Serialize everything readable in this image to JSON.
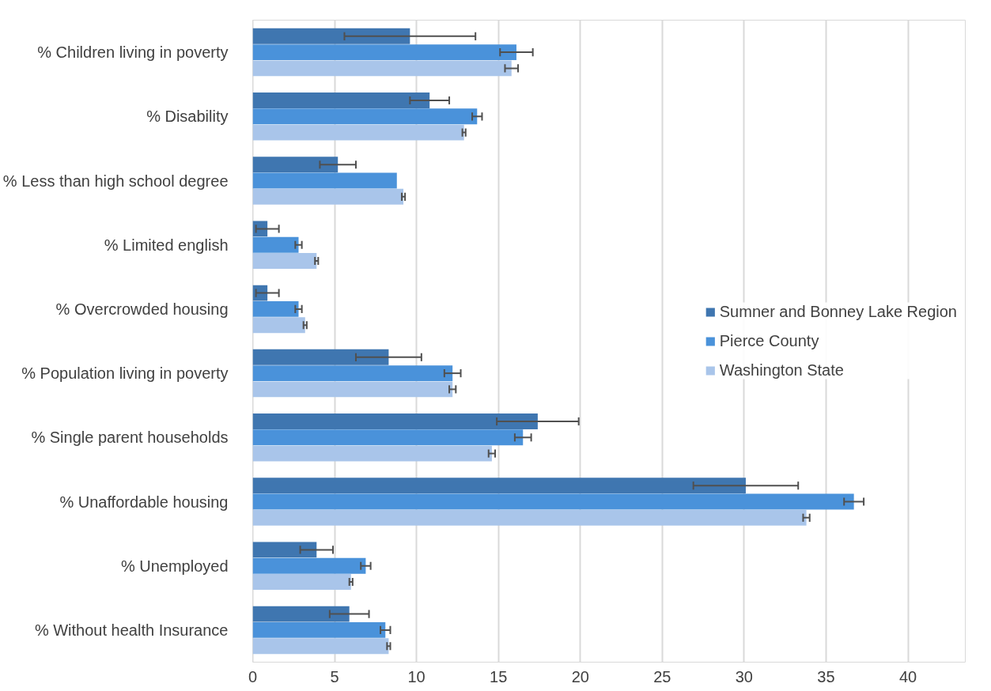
{
  "chart_data": {
    "type": "bar",
    "orientation": "horizontal",
    "categories": [
      "% Children living in poverty",
      "% Disability",
      "% Less than high school degree",
      "% Limited english",
      "% Overcrowded housing",
      "% Population living in poverty",
      "% Single parent households",
      "% Unaffordable housing",
      "% Unemployed",
      "% Without health Insurance"
    ],
    "series": [
      {
        "name": "Sumner and Bonney Lake Region",
        "color": "#3f76b0",
        "values": [
          9.6,
          10.8,
          5.2,
          0.9,
          0.9,
          8.3,
          17.4,
          30.1,
          3.9,
          5.9
        ],
        "errors": [
          4,
          1.2,
          1.1,
          0.7,
          0.7,
          2,
          2.5,
          3.2,
          1,
          1.2
        ]
      },
      {
        "name": "Pierce County",
        "color": "#4a92da",
        "values": [
          16.1,
          13.7,
          8.8,
          2.8,
          2.8,
          12.2,
          16.5,
          36.7,
          6.9,
          8.1
        ],
        "errors": [
          1,
          0.3,
          null,
          0.2,
          0.2,
          0.5,
          0.5,
          0.6,
          0.3,
          0.3
        ]
      },
      {
        "name": "Washington State",
        "color": "#a9c5ea",
        "values": [
          15.8,
          12.9,
          9.2,
          3.9,
          3.2,
          12.2,
          14.6,
          33.8,
          6,
          8.3
        ],
        "errors": [
          0.4,
          0.1,
          0.1,
          0.1,
          0.1,
          0.2,
          0.2,
          0.2,
          0.1,
          0.1
        ]
      }
    ],
    "xlim": [
      0,
      43.5
    ],
    "xticks": [
      0,
      5,
      10,
      15,
      20,
      25,
      30,
      35,
      40
    ],
    "grid": "x",
    "legend": "right"
  }
}
